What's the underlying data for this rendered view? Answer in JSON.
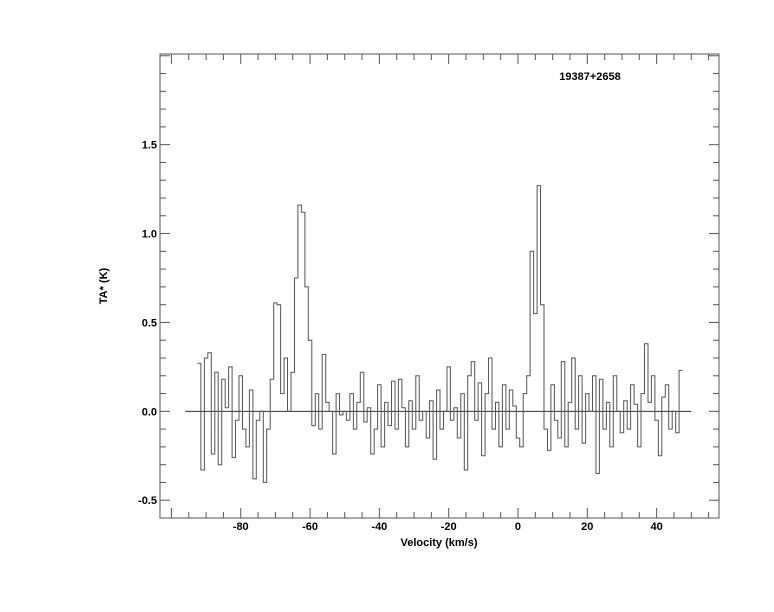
{
  "chart_data": {
    "type": "line",
    "style": "histogram-step",
    "title": "19387+2658",
    "xlabel": "Velocity (km/s)",
    "ylabel": "TA* (K)",
    "xlim": [
      -103.3,
      58
    ],
    "ylim": [
      -0.6,
      2.01
    ],
    "xticks": [
      -80,
      -60,
      -40,
      -20,
      0,
      20,
      40
    ],
    "xtick_labels": [
      "-80",
      "-60",
      "-40",
      "-20",
      "0",
      "20",
      "40"
    ],
    "yticks": [
      -0.5,
      0.0,
      0.5,
      1.0,
      1.5
    ],
    "ytick_labels": [
      "-0.5",
      "0.0",
      "0.5",
      "1.0",
      "1.5"
    ],
    "baseline": {
      "y": 0.0,
      "x_range": [
        -96,
        50
      ]
    },
    "grid": false,
    "line_color": "#555555",
    "x": [
      -92,
      -91,
      -90,
      -89,
      -88,
      -87,
      -86,
      -85,
      -84,
      -83,
      -82,
      -81,
      -80,
      -79,
      -78,
      -77,
      -76,
      -75,
      -74,
      -73,
      -72,
      -71,
      -70,
      -69,
      -68,
      -67,
      -66,
      -65,
      -64,
      -63,
      -62,
      -61,
      -60,
      -59,
      -58,
      -57,
      -56,
      -55,
      -54,
      -53,
      -52,
      -51,
      -50,
      -49,
      -48,
      -47,
      -46,
      -45,
      -44,
      -43,
      -42,
      -41,
      -40,
      -39,
      -38,
      -37,
      -36,
      -35,
      -34,
      -33,
      -32,
      -31,
      -30,
      -29,
      -28,
      -27,
      -26,
      -25,
      -24,
      -23,
      -22,
      -21,
      -20,
      -19,
      -18,
      -17,
      -16,
      -15,
      -14,
      -13,
      -12,
      -11,
      -10,
      -9,
      -8,
      -7,
      -6,
      -5,
      -4,
      -3,
      -2,
      -1,
      0,
      1,
      2,
      3,
      4,
      5,
      6,
      7,
      8,
      9,
      10,
      11,
      12,
      13,
      14,
      15,
      16,
      17,
      18,
      19,
      20,
      21,
      22,
      23,
      24,
      25,
      26,
      27,
      28,
      29,
      30,
      31,
      32,
      33,
      34,
      35,
      36,
      37,
      38,
      39,
      40,
      41,
      42,
      43,
      44,
      45,
      46,
      47
    ],
    "y": [
      0.27,
      -0.33,
      0.3,
      0.33,
      -0.24,
      0.22,
      -0.3,
      0.18,
      0.02,
      0.25,
      -0.26,
      -0.05,
      0.2,
      -0.1,
      -0.2,
      0.12,
      -0.38,
      -0.05,
      0.0,
      -0.4,
      -0.1,
      0.18,
      0.61,
      0.6,
      0.1,
      0.3,
      0.0,
      0.22,
      0.75,
      1.16,
      1.12,
      0.7,
      0.4,
      -0.08,
      0.1,
      -0.1,
      0.32,
      0.05,
      0.0,
      -0.24,
      0.1,
      -0.02,
      0.0,
      -0.05,
      0.1,
      -0.1,
      0.05,
      0.22,
      -0.06,
      0.02,
      -0.24,
      -0.1,
      0.15,
      -0.2,
      0.05,
      -0.08,
      0.17,
      -0.1,
      0.18,
      0.02,
      -0.2,
      0.06,
      -0.1,
      0.2,
      -0.05,
      0.0,
      -0.15,
      0.06,
      -0.27,
      0.12,
      -0.1,
      0.0,
      0.25,
      -0.05,
      0.02,
      -0.15,
      0.1,
      -0.33,
      0.2,
      0.28,
      -0.05,
      0.16,
      -0.25,
      0.1,
      0.3,
      -0.1,
      0.05,
      -0.2,
      0.15,
      -0.1,
      0.12,
      0.03,
      -0.15,
      -0.2,
      0.1,
      0.2,
      0.9,
      0.55,
      1.27,
      0.6,
      -0.1,
      -0.22,
      0.15,
      -0.05,
      -0.15,
      0.28,
      -0.2,
      0.05,
      0.3,
      -0.1,
      0.2,
      -0.18,
      0.1,
      0.0,
      0.2,
      -0.35,
      0.18,
      -0.1,
      0.05,
      -0.2,
      0.2,
      0.0,
      -0.12,
      0.06,
      -0.1,
      0.15,
      0.04,
      -0.2,
      0.1,
      0.38,
      0.05,
      0.2,
      -0.05,
      -0.25,
      0.08,
      0.15,
      -0.1,
      0.0,
      -0.12,
      0.23
    ]
  }
}
